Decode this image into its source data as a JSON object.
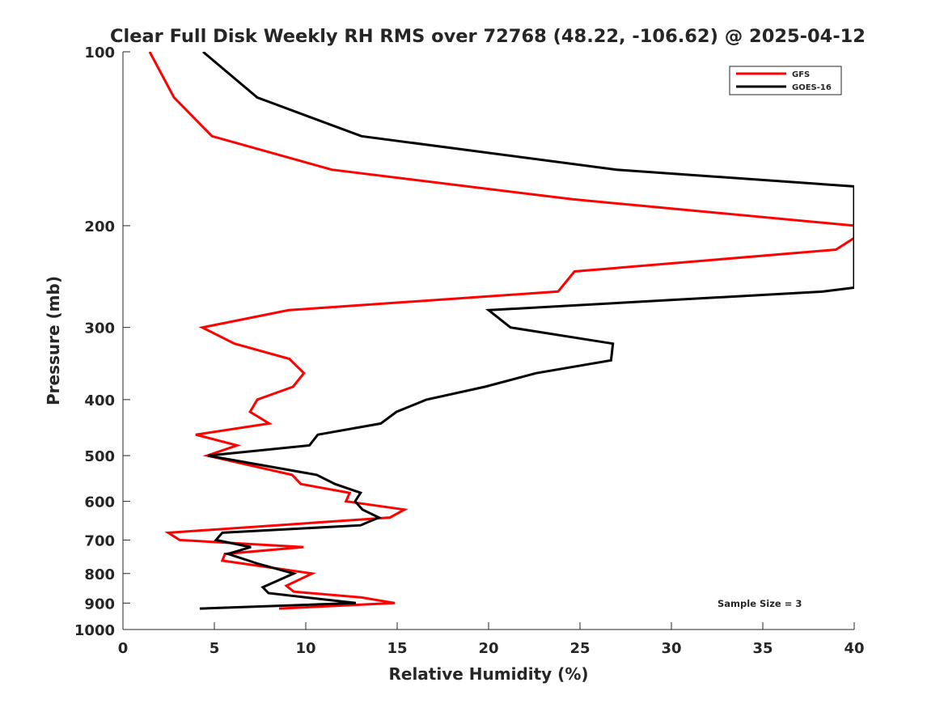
{
  "chart_data": {
    "type": "line",
    "title": "Clear Full Disk Weekly RH RMS over 72768 (48.22, -106.62) @ 2025-04-12",
    "xlabel": "Relative Humidity (%)",
    "ylabel": "Pressure (mb)",
    "xlim": [
      0,
      40
    ],
    "ylim": [
      100,
      1000
    ],
    "yscale": "log",
    "y_reversed": true,
    "grid": false,
    "xticks": [
      "0",
      "5",
      "10",
      "15",
      "20",
      "25",
      "30",
      "35",
      "40"
    ],
    "xtick_values": [
      0,
      5,
      10,
      15,
      20,
      25,
      30,
      35,
      40
    ],
    "yticks": [
      "100",
      "200",
      "300",
      "400",
      "500",
      "600",
      "700",
      "800",
      "900",
      "1000"
    ],
    "ytick_values": [
      100,
      200,
      300,
      400,
      500,
      600,
      700,
      800,
      900,
      1000
    ],
    "legend_placement": "top-right",
    "annotation": "Sample Size = 3",
    "series": [
      {
        "name": "GFS",
        "color": "#ff0000",
        "x": [
          1.46,
          2.79,
          4.87,
          11.42,
          24.6,
          40,
          40,
          39.0,
          24.7,
          23.8,
          9.07,
          4.34,
          6.1,
          9.1,
          9.9,
          9.3,
          7.35,
          6.95,
          8.0,
          3.98,
          6.24,
          4.6,
          9.25,
          9.73,
          12.4,
          12.2,
          15.4,
          14.6,
          2.48,
          3.1,
          9.87,
          5.58,
          5.44,
          10.35,
          8.94,
          9.34,
          13.05,
          14.87,
          8.54
        ],
        "pressure": [
          100,
          120,
          140,
          160,
          180,
          200,
          210,
          220,
          240,
          260,
          280,
          300,
          320,
          340,
          360,
          380,
          400,
          420,
          440,
          460,
          480,
          500,
          540,
          560,
          580,
          600,
          620,
          640,
          680,
          700,
          720,
          740,
          760,
          800,
          840,
          860,
          880,
          900,
          920
        ]
      },
      {
        "name": "GOES-16",
        "color": "#000000",
        "x": [
          4.38,
          7.35,
          13.05,
          27.0,
          40,
          40,
          38.3,
          20.0,
          21.2,
          26.8,
          26.7,
          22.6,
          19.8,
          16.6,
          14.96,
          14.1,
          10.66,
          10.2,
          4.65,
          10.6,
          11.6,
          13.0,
          12.7,
          13.1,
          14.0,
          13.0,
          5.44,
          5.09,
          7.0,
          5.75,
          7.43,
          9.34,
          7.65,
          7.96,
          12.74,
          4.2
        ],
        "pressure": [
          100,
          120,
          140,
          160,
          171,
          256,
          260,
          280,
          300,
          320,
          342,
          360,
          380,
          400,
          420,
          440,
          460,
          480,
          500,
          540,
          560,
          580,
          600,
          620,
          640,
          660,
          680,
          700,
          720,
          740,
          770,
          800,
          845,
          865,
          900,
          920
        ]
      }
    ]
  }
}
